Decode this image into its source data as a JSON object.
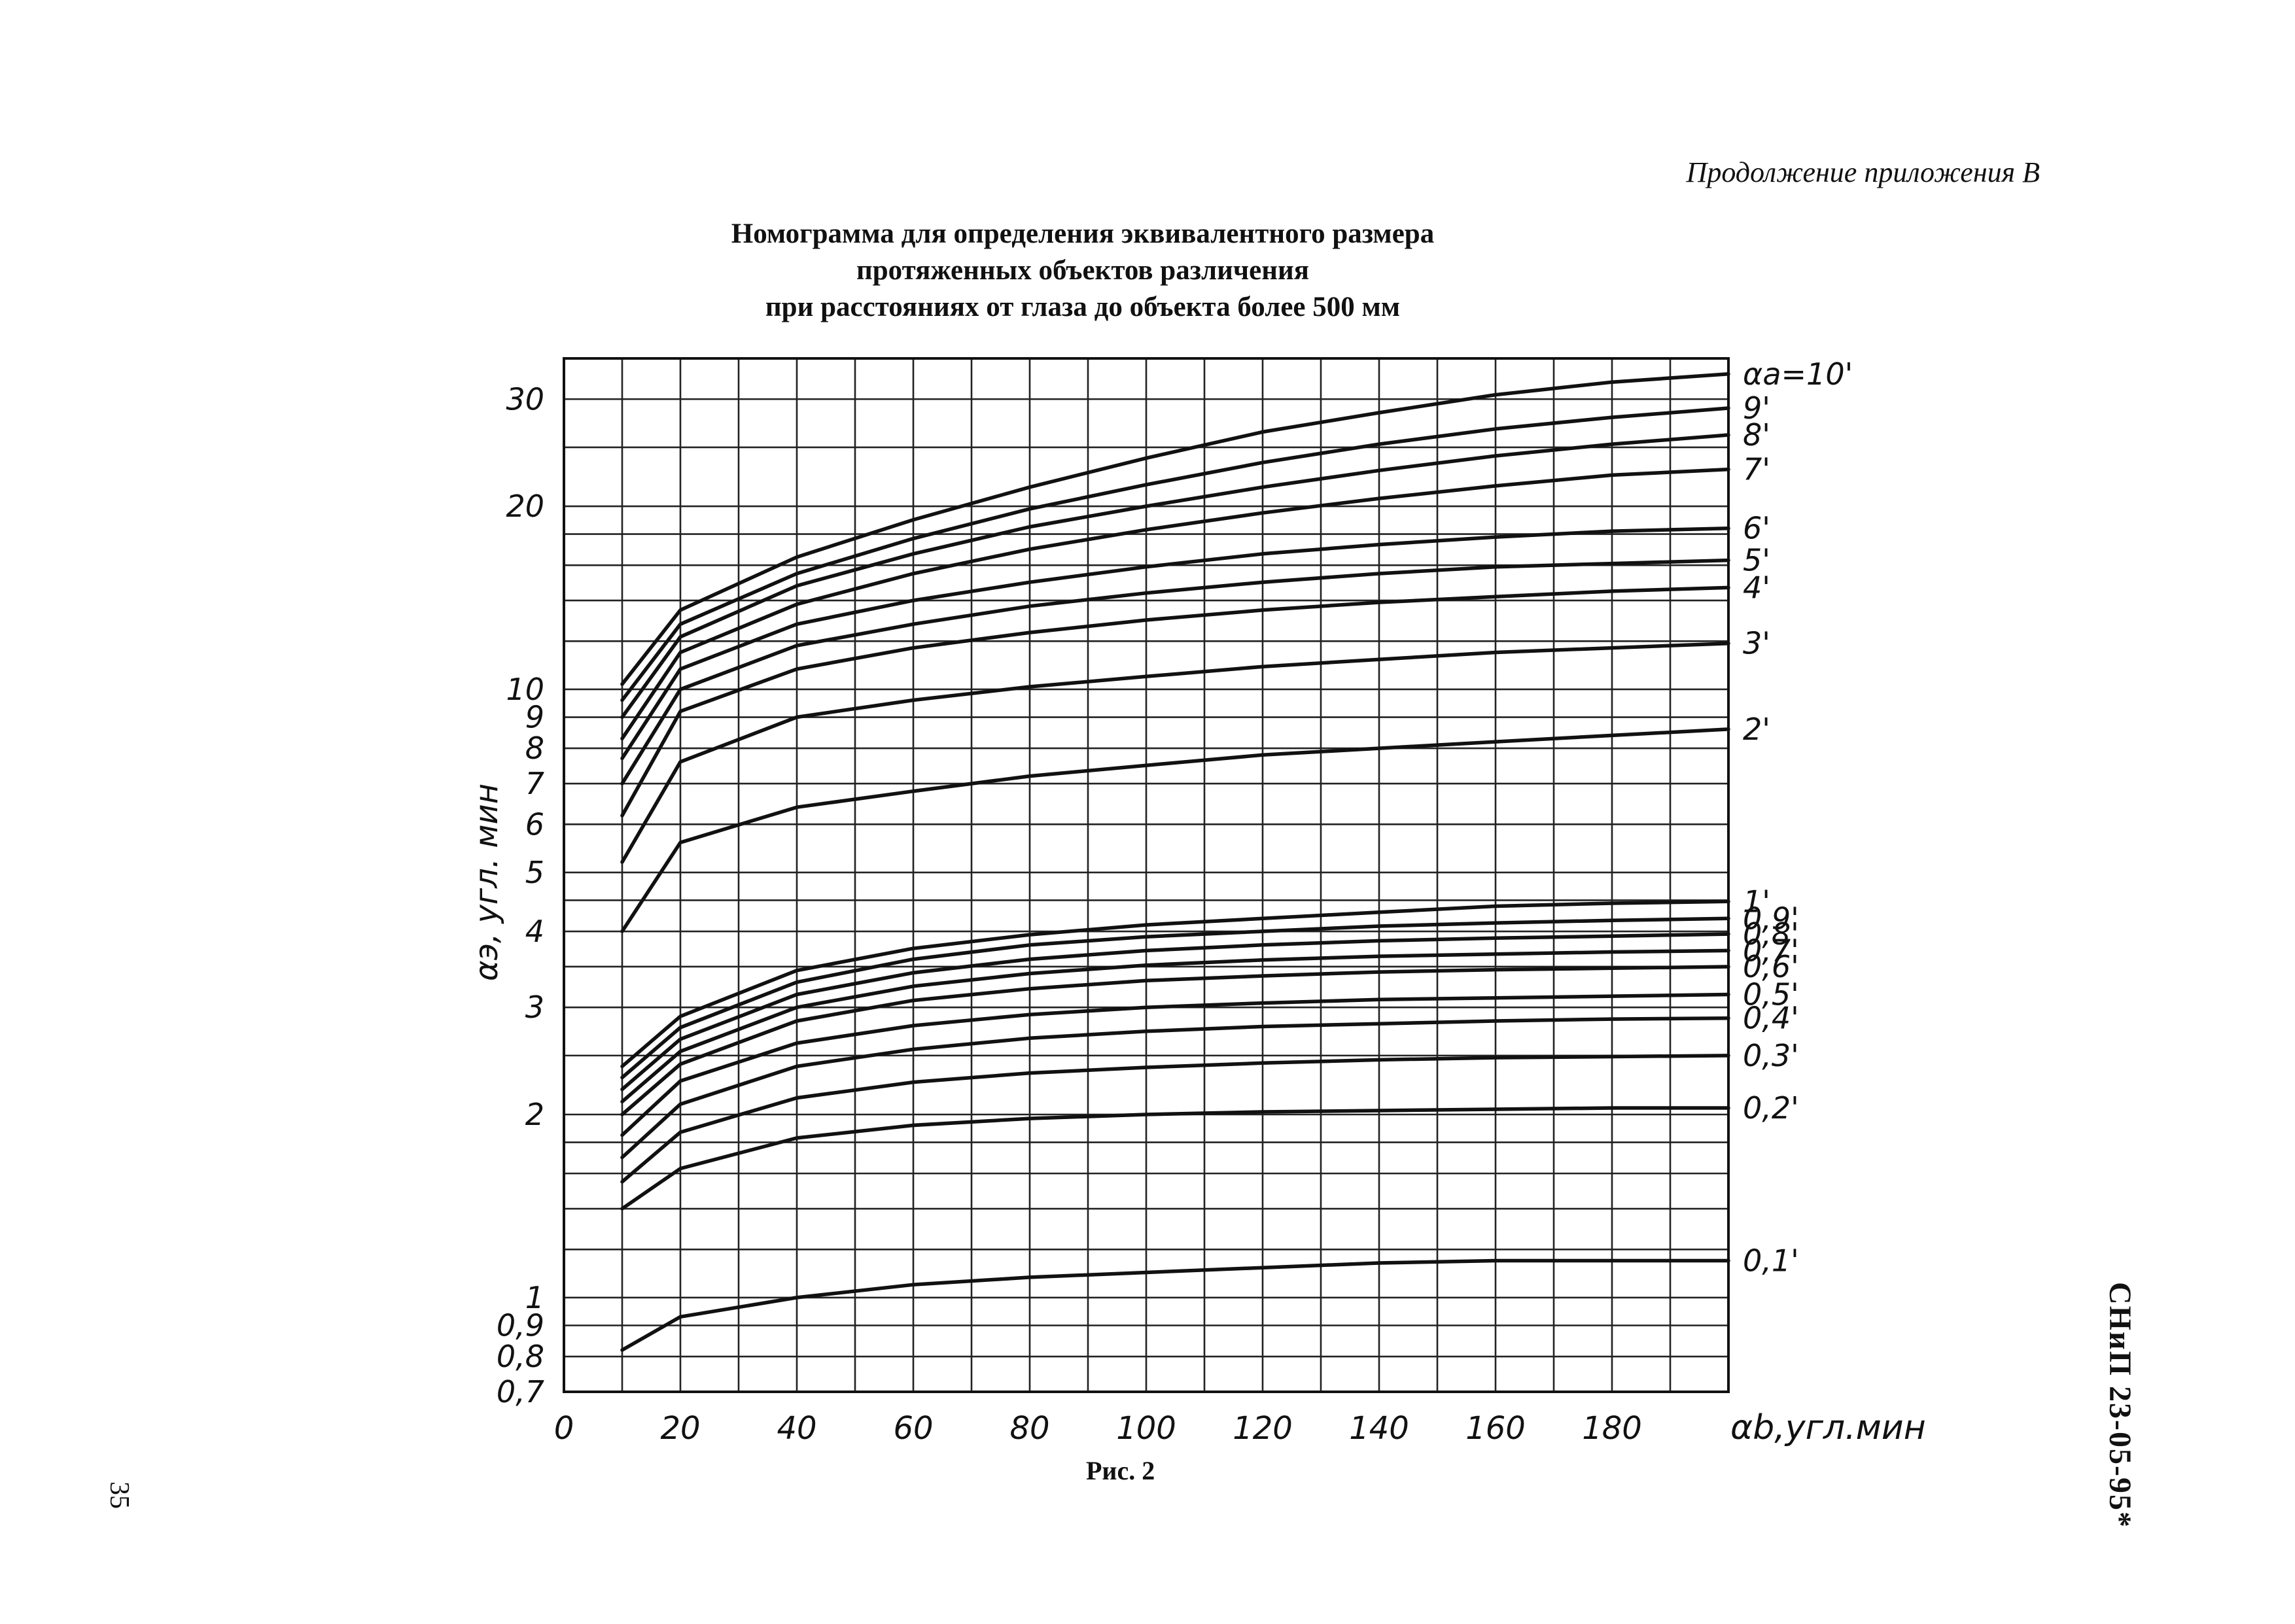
{
  "page": {
    "header_note": "Продолжение приложения В",
    "title_lines": [
      "Номограмма для определения эквивалентного размера",
      "протяженных объектов различения",
      "при расстояниях от глаза до объекта более 500 мм"
    ],
    "caption": "Рис. 2",
    "page_number": "35",
    "standard_code": "СНиП 23-05-95*"
  },
  "chart_data": {
    "type": "line",
    "title": "Номограмма для определения эквивалентного размера протяженных объектов различения при расстояниях от глаза до объекта более 500 мм",
    "xlabel": "αb,угл.мин",
    "ylabel": "αэ, угл. мин",
    "x_scale": "linear",
    "y_scale": "log",
    "xlim": [
      0,
      200
    ],
    "ylim": [
      0.7,
      35
    ],
    "x_ticks": [
      "0",
      "20",
      "40",
      "60",
      "80",
      "100",
      "120",
      "140",
      "160",
      "180"
    ],
    "y_ticks": [
      "0,7",
      "0,8",
      "0,9",
      "1",
      "2",
      "3",
      "4",
      "5",
      "6",
      "7",
      "8",
      "9",
      "10",
      "20",
      "30"
    ],
    "grid": true,
    "x": [
      10,
      20,
      40,
      60,
      80,
      100,
      120,
      140,
      160,
      180,
      200
    ],
    "series": [
      {
        "name": "αa=10'",
        "values": [
          10.2,
          13.5,
          16.5,
          19.0,
          21.5,
          24.0,
          26.5,
          28.5,
          30.5,
          32.0,
          33.0
        ]
      },
      {
        "name": "9'",
        "values": [
          9.6,
          12.8,
          15.5,
          17.7,
          19.8,
          21.7,
          23.6,
          25.3,
          26.8,
          28.0,
          29.0
        ]
      },
      {
        "name": "8'",
        "values": [
          9.0,
          12.2,
          14.8,
          16.7,
          18.5,
          20.0,
          21.5,
          22.9,
          24.2,
          25.3,
          26.2
        ]
      },
      {
        "name": "7'",
        "values": [
          8.3,
          11.5,
          13.8,
          15.5,
          17.0,
          18.3,
          19.5,
          20.6,
          21.6,
          22.5,
          23.0
        ]
      },
      {
        "name": "6'",
        "values": [
          7.7,
          10.8,
          12.8,
          14.0,
          15.0,
          15.9,
          16.7,
          17.3,
          17.8,
          18.2,
          18.4
        ]
      },
      {
        "name": "5'",
        "values": [
          7.0,
          10.0,
          11.8,
          12.8,
          13.7,
          14.4,
          15.0,
          15.5,
          15.9,
          16.1,
          16.3
        ]
      },
      {
        "name": "4'",
        "values": [
          6.2,
          9.2,
          10.8,
          11.7,
          12.4,
          13.0,
          13.5,
          13.9,
          14.2,
          14.5,
          14.7
        ]
      },
      {
        "name": "3'",
        "values": [
          5.2,
          7.6,
          9.0,
          9.6,
          10.1,
          10.5,
          10.9,
          11.2,
          11.5,
          11.7,
          11.9
        ]
      },
      {
        "name": "2'",
        "values": [
          4.0,
          5.6,
          6.4,
          6.8,
          7.2,
          7.5,
          7.8,
          8.0,
          8.2,
          8.4,
          8.6
        ]
      },
      {
        "name": "1'",
        "values": [
          2.4,
          2.9,
          3.45,
          3.75,
          3.95,
          4.1,
          4.2,
          4.3,
          4.4,
          4.45,
          4.48
        ]
      },
      {
        "name": "0,9'",
        "values": [
          2.3,
          2.78,
          3.3,
          3.6,
          3.8,
          3.92,
          4.0,
          4.08,
          4.13,
          4.17,
          4.2
        ]
      },
      {
        "name": "0,8'",
        "values": [
          2.2,
          2.66,
          3.15,
          3.42,
          3.6,
          3.72,
          3.8,
          3.86,
          3.9,
          3.93,
          3.96
        ]
      },
      {
        "name": "0,7'",
        "values": [
          2.1,
          2.54,
          3.0,
          3.25,
          3.41,
          3.52,
          3.59,
          3.64,
          3.67,
          3.7,
          3.72
        ]
      },
      {
        "name": "0,6'",
        "values": [
          2.0,
          2.42,
          2.85,
          3.08,
          3.22,
          3.32,
          3.38,
          3.43,
          3.46,
          3.48,
          3.5
        ]
      },
      {
        "name": "0,5'",
        "values": [
          1.85,
          2.27,
          2.62,
          2.8,
          2.92,
          3.0,
          3.05,
          3.09,
          3.11,
          3.13,
          3.15
        ]
      },
      {
        "name": "0,4'",
        "values": [
          1.7,
          2.08,
          2.4,
          2.56,
          2.67,
          2.74,
          2.79,
          2.82,
          2.85,
          2.87,
          2.88
        ]
      },
      {
        "name": "0,3'",
        "values": [
          1.55,
          1.87,
          2.13,
          2.26,
          2.34,
          2.39,
          2.43,
          2.46,
          2.48,
          2.49,
          2.5
        ]
      },
      {
        "name": "0,2'",
        "values": [
          1.4,
          1.63,
          1.83,
          1.92,
          1.97,
          2.0,
          2.02,
          2.03,
          2.04,
          2.05,
          2.05
        ]
      },
      {
        "name": "0,1'",
        "values": [
          0.82,
          0.93,
          1.0,
          1.05,
          1.08,
          1.1,
          1.12,
          1.14,
          1.15,
          1.15,
          1.15
        ]
      }
    ]
  }
}
